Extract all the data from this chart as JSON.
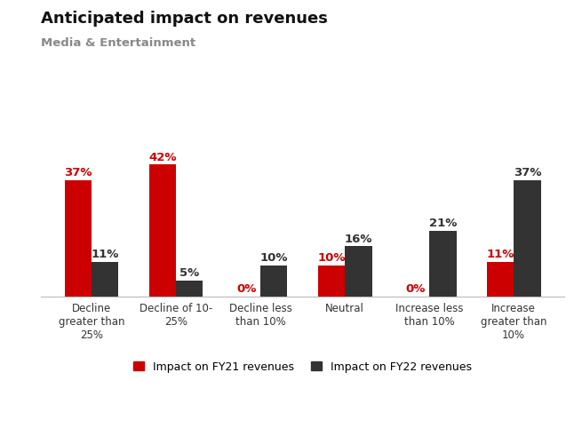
{
  "title": "Anticipated impact on revenues",
  "subtitle": "Media & Entertainment",
  "categories": [
    "Decline\ngreater than\n25%",
    "Decline of 10-\n25%",
    "Decline less\nthan 10%",
    "Neutral",
    "Increase less\nthan 10%",
    "Increase\ngreater than\n10%"
  ],
  "fy21_values": [
    37,
    42,
    0,
    10,
    0,
    11
  ],
  "fy22_values": [
    11,
    5,
    10,
    16,
    21,
    37
  ],
  "fy21_color": "#cc0000",
  "fy22_color": "#333333",
  "fy21_label": "Impact on FY21 revenues",
  "fy22_label": "Impact on FY22 revenues",
  "bar_width": 0.32,
  "ylim": [
    0,
    50
  ],
  "background_color": "#ffffff",
  "title_fontsize": 13,
  "subtitle_fontsize": 9.5,
  "tick_fontsize": 8.5,
  "legend_fontsize": 9,
  "value_fontsize": 9.5
}
